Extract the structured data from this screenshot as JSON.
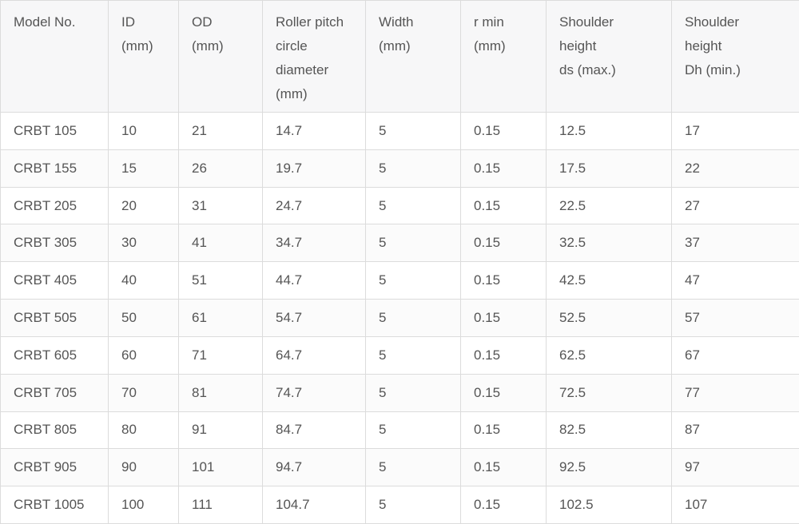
{
  "table": {
    "header": [
      "Model No.",
      "ID\n(mm)",
      "OD\n(mm)",
      "Roller pitch\ncircle\ndiameter\n(mm)",
      "Width\n(mm)",
      "r min\n(mm)",
      "Shoulder\nheight\nds (max.)",
      "Shoulder\nheight\nDh (min.)"
    ],
    "rows": [
      [
        "CRBT 105",
        "10",
        "21",
        "14.7",
        "5",
        "0.15",
        "12.5",
        "17"
      ],
      [
        "CRBT 155",
        "15",
        "26",
        "19.7",
        "5",
        "0.15",
        "17.5",
        "22"
      ],
      [
        "CRBT 205",
        "20",
        "31",
        "24.7",
        "5",
        "0.15",
        "22.5",
        "27"
      ],
      [
        "CRBT 305",
        "30",
        "41",
        "34.7",
        "5",
        "0.15",
        "32.5",
        "37"
      ],
      [
        "CRBT 405",
        "40",
        "51",
        "44.7",
        "5",
        "0.15",
        "42.5",
        "47"
      ],
      [
        "CRBT 505",
        "50",
        "61",
        "54.7",
        "5",
        "0.15",
        "52.5",
        "57"
      ],
      [
        "CRBT 605",
        "60",
        "71",
        "64.7",
        "5",
        "0.15",
        "62.5",
        "67"
      ],
      [
        "CRBT 705",
        "70",
        "81",
        "74.7",
        "5",
        "0.15",
        "72.5",
        "77"
      ],
      [
        "CRBT 805",
        "80",
        "91",
        "84.7",
        "5",
        "0.15",
        "82.5",
        "87"
      ],
      [
        "CRBT 905",
        "90",
        "101",
        "94.7",
        "5",
        "0.15",
        "92.5",
        "97"
      ],
      [
        "CRBT 1005",
        "100",
        "111",
        "104.7",
        "5",
        "0.15",
        "102.5",
        "107"
      ]
    ]
  }
}
